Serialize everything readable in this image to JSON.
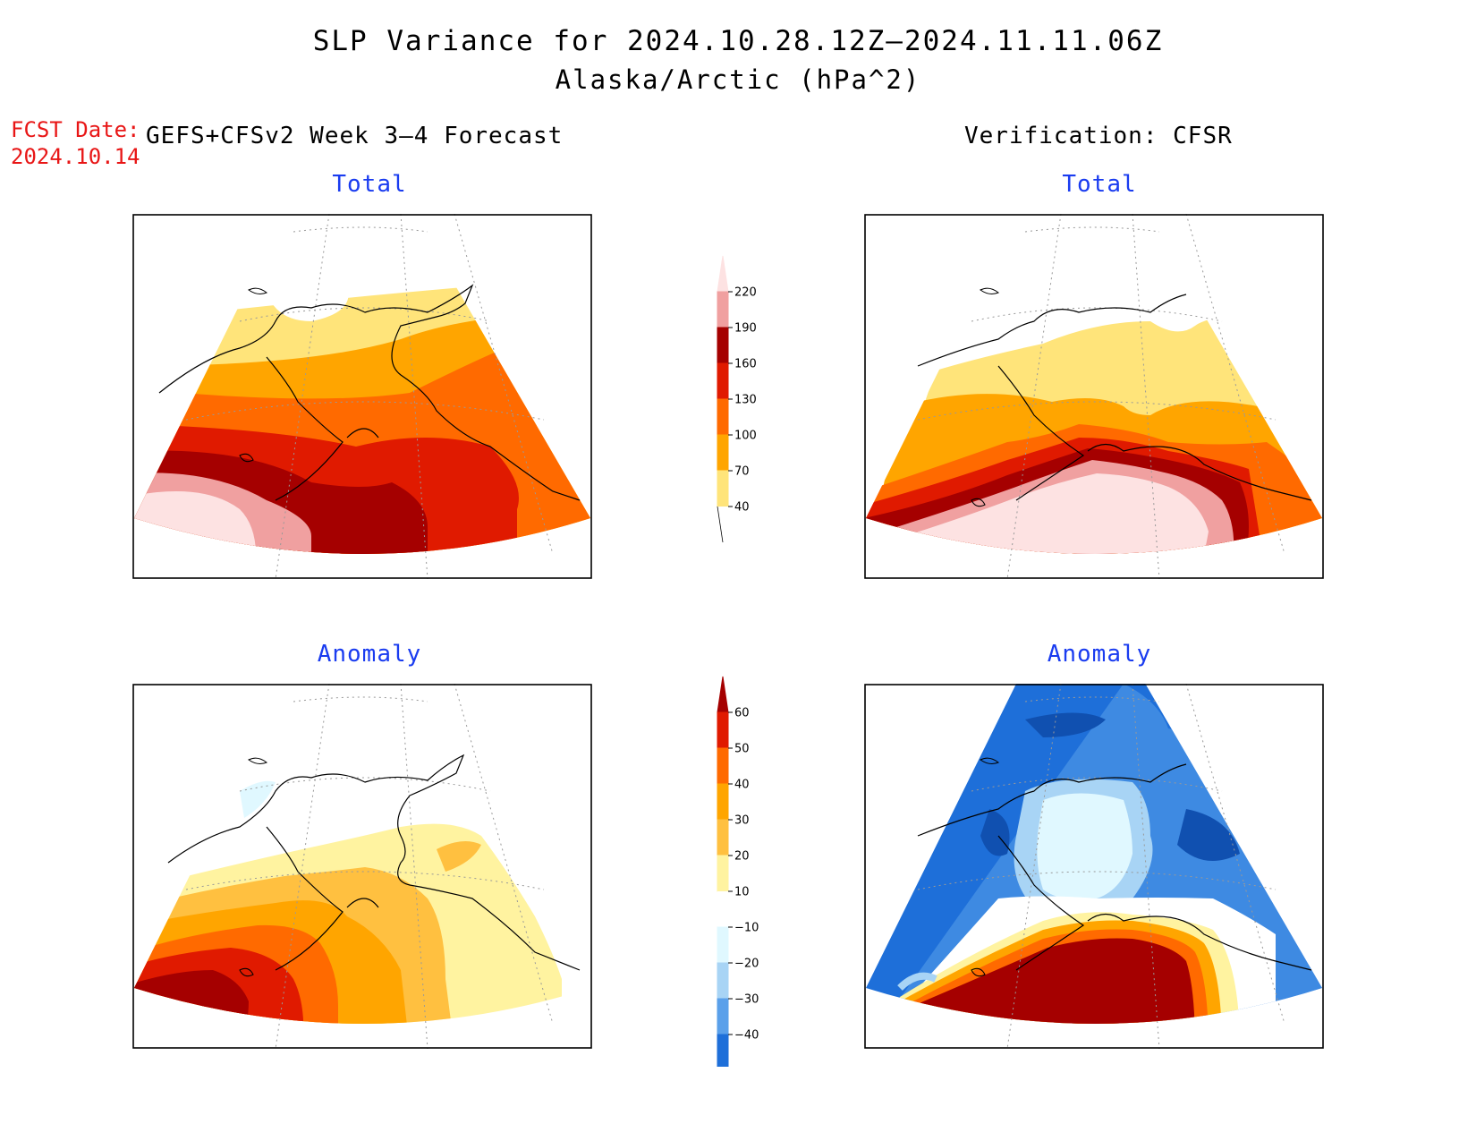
{
  "header": {
    "title": "SLP Variance for 2024.10.28.12Z–2024.11.11.06Z",
    "subtitle": "Alaska/Arctic (hPa^2)",
    "fcst_label": "FCST Date:",
    "fcst_date": "2024.10.14",
    "forecast_source": "GEFS+CFSv2 Week 3–4 Forecast",
    "verification_source": "Verification: CFSR"
  },
  "panels": {
    "fcst_total": {
      "title": "Total"
    },
    "verif_total": {
      "title": "Total"
    },
    "fcst_anomaly": {
      "title": "Anomaly"
    },
    "verif_anomaly": {
      "title": "Anomaly"
    }
  },
  "colorbars": {
    "total": {
      "labels": [
        "220",
        "190",
        "160",
        "130",
        "100",
        "70",
        "40"
      ],
      "colors": [
        "#fde2e2",
        "#f0a0a0",
        "#a50000",
        "#e01a00",
        "#ff6a00",
        "#ffa500",
        "#ffe47a",
        "#ffffff"
      ]
    },
    "anomaly": {
      "labels": [
        "60",
        "50",
        "40",
        "30",
        "20",
        "10",
        "−10",
        "−20",
        "−30",
        "−40"
      ],
      "colors": [
        "#a50000",
        "#e01a00",
        "#ff6a00",
        "#ffa500",
        "#ffc040",
        "#fff3a0",
        "#ffffff",
        "#e0f8ff",
        "#a8d4f5",
        "#5aa0ea",
        "#1e6fd9",
        "#1050b0"
      ]
    }
  },
  "palette": {
    "t40": "#ffe47a",
    "t70": "#ffa500",
    "t100": "#ff6a00",
    "t130": "#e01a00",
    "t160": "#a50000",
    "t190": "#f0a0a0",
    "t220": "#fde2e2",
    "a10": "#fff3a0",
    "a20": "#ffc040",
    "a30": "#ffa500",
    "a40": "#ff6a00",
    "a50": "#e01a00",
    "a60": "#a50000",
    "n10": "#e0f8ff",
    "n20": "#a8d4f5",
    "n30": "#5aa0ea",
    "n40": "#1e6fd9"
  }
}
